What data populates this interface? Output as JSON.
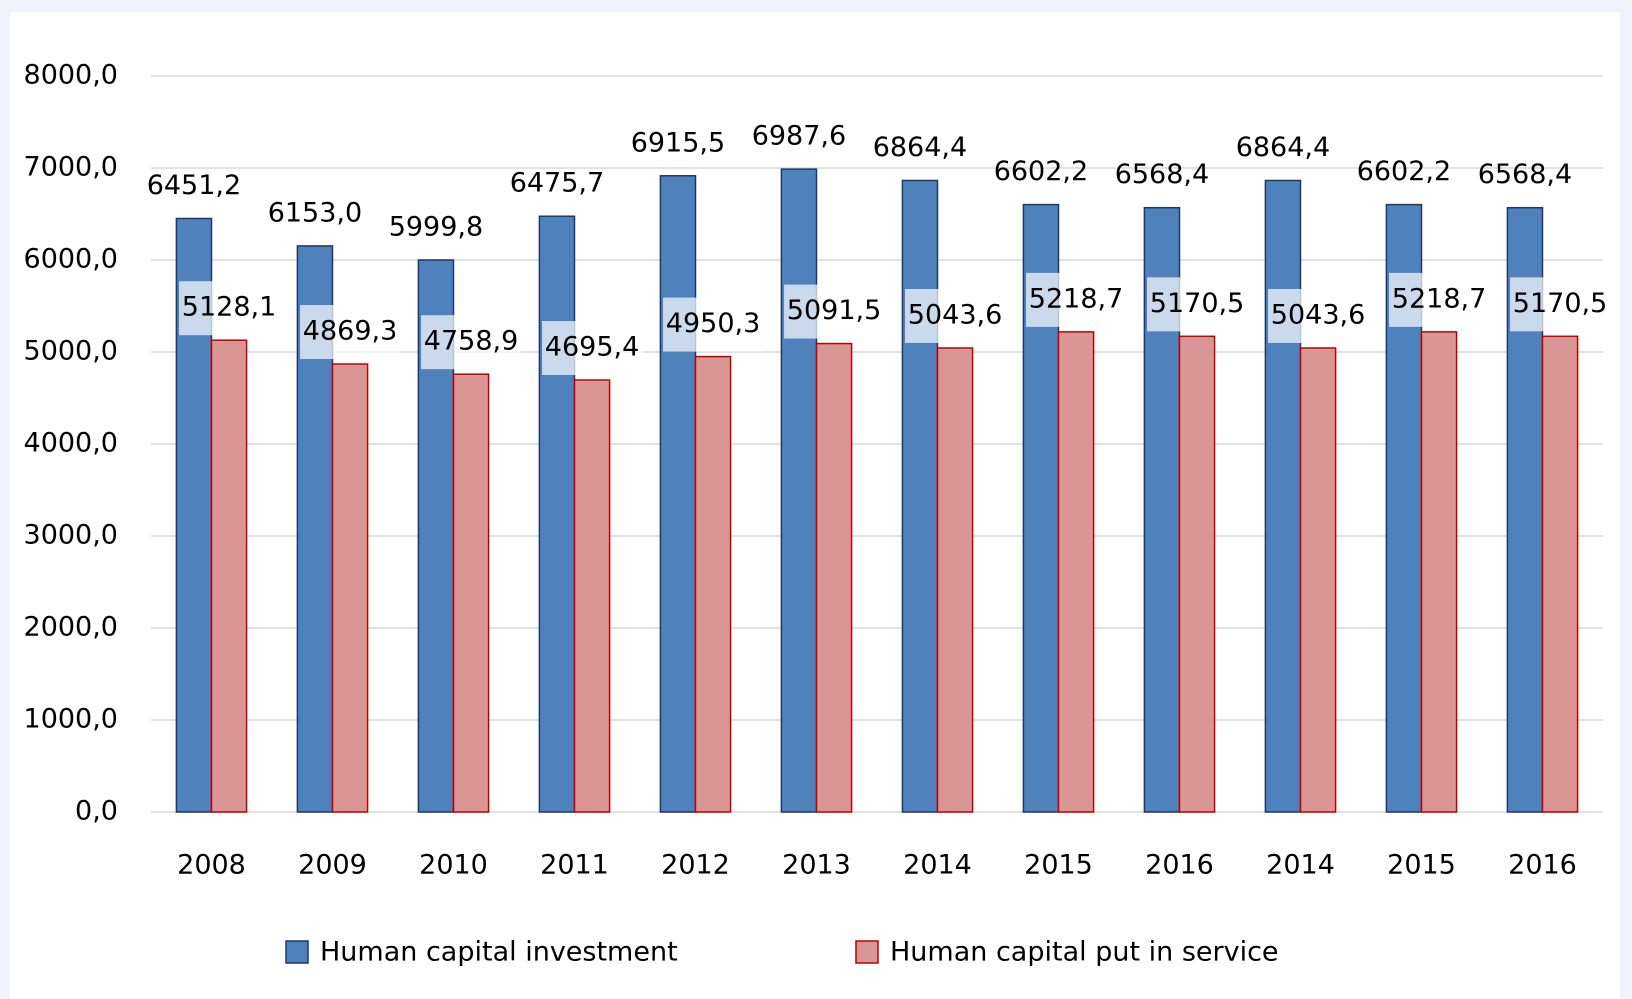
{
  "chart_data": {
    "type": "bar",
    "categories": [
      "2008",
      "2009",
      "2010",
      "2011",
      "2012",
      "2013",
      "2014",
      "2015",
      "2016",
      "2014",
      "2015",
      "2016"
    ],
    "series": [
      {
        "name": "Human capital investment",
        "color": "#4f81bd",
        "values": [
          6451.2,
          6153.0,
          5999.8,
          6475.7,
          6915.5,
          6987.6,
          6864.4,
          6602.2,
          6568.4,
          6864.4,
          6602.2,
          6568.4
        ],
        "value_labels": [
          "6451,2",
          "6153,0",
          "5999,8",
          "6475,7",
          "6915,5",
          "6987,6",
          "6864,4",
          "6602,2",
          "6568,4",
          "6864,4",
          "6602,2",
          "6568,4"
        ]
      },
      {
        "name": "Human capital put in service",
        "color": "#da9694",
        "values": [
          5128.1,
          4869.3,
          4758.9,
          4695.4,
          4950.3,
          5091.5,
          5043.6,
          5218.7,
          5170.5,
          5043.6,
          5218.7,
          5170.5
        ],
        "value_labels": [
          "5128,1",
          "4869,3",
          "4758,9",
          "4695,4",
          "4950,3",
          "5091,5",
          "5043,6",
          "5218,7",
          "5170,5",
          "5043,6",
          "5218,7",
          "5170,5"
        ]
      }
    ],
    "ylim": [
      0,
      8000
    ],
    "yticks": [
      {
        "value": 0,
        "label": "0,0"
      },
      {
        "value": 1000,
        "label": "1000,0"
      },
      {
        "value": 2000,
        "label": "2000,0"
      },
      {
        "value": 3000,
        "label": "3000,0"
      },
      {
        "value": 4000,
        "label": "4000,0"
      },
      {
        "value": 5000,
        "label": "5000,0"
      },
      {
        "value": 6000,
        "label": "6000,0"
      },
      {
        "value": 7000,
        "label": "7000,0"
      },
      {
        "value": 8000,
        "label": "8000,0"
      }
    ],
    "grid": true,
    "legend": "bottom"
  }
}
